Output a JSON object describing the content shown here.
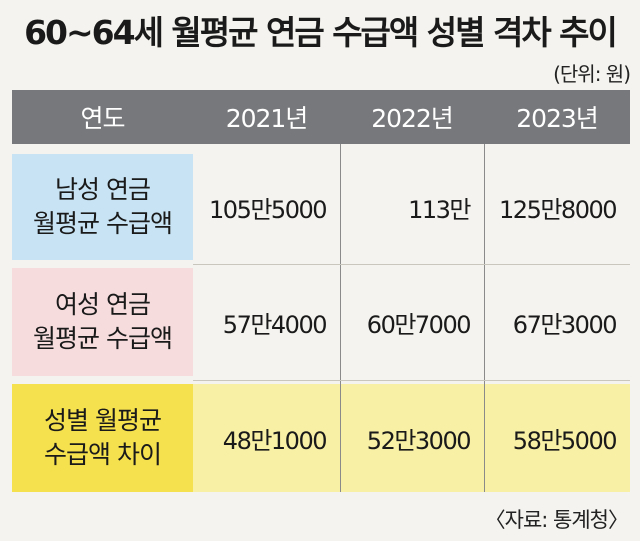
{
  "title": "60~64세 월평균 연금 수급액 성별 격차 추이",
  "unit": "(단위: 원)",
  "source": "〈자료: 통계청〉",
  "chart_data": {
    "type": "table",
    "header": [
      "연도",
      "2021년",
      "2022년",
      "2023년"
    ],
    "rows": [
      {
        "label": [
          "남성 연금",
          "월평균 수급액"
        ],
        "values": [
          "105만5000",
          "113만",
          "125만8000"
        ],
        "numeric": [
          1055000,
          1130000,
          1258000
        ]
      },
      {
        "label": [
          "여성 연금",
          "월평균 수급액"
        ],
        "values": [
          "57만4000",
          "60만7000",
          "67만3000"
        ],
        "numeric": [
          574000,
          607000,
          673000
        ]
      },
      {
        "label": [
          "성별 월평균",
          "수급액 차이"
        ],
        "values": [
          "48만1000",
          "52만3000",
          "58만5000"
        ],
        "numeric": [
          481000,
          523000,
          585000
        ]
      }
    ],
    "colors": {
      "header": "#77787b",
      "male": "#c8e4f4",
      "female": "#f6dcdd",
      "difference": "#f5e04e",
      "difference_values": "#f8f0a4"
    }
  }
}
